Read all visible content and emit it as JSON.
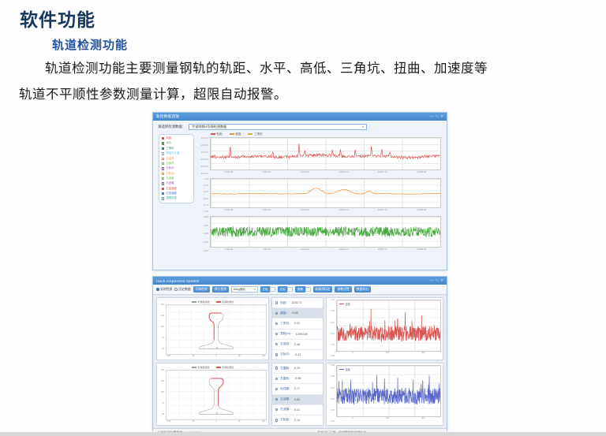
{
  "page": {
    "title": "软件功能",
    "subtitle": "轨道检测功能",
    "paragraph_line1": "轨道检测功能主要测量钢轨的轨距、水平、高低、三角坑、扭曲、加速度等",
    "paragraph_line2": "轨道不平顺性参数测量计算，超限自动报警。"
  },
  "colors": {
    "accent_blue": "#4587cd",
    "red": "#d9534f",
    "orange": "#f0943c",
    "green": "#45a83c",
    "blue_series": "#5a66c9"
  },
  "window1": {
    "title": "轨检数据回放",
    "controls": [
      "—",
      "□",
      "✕"
    ],
    "select_label": "请选择检测数据：",
    "select_value": "宁波地铁4号线检测数据",
    "sidebar_items": [
      {
        "label": "轨距",
        "color": "#d9534f",
        "filled": true
      },
      {
        "label": "水平",
        "color": "#3f9e3f",
        "filled": true
      },
      {
        "label": "三角坑",
        "color": "#2e7d6e",
        "filled": true
      },
      {
        "label": "超高设计值",
        "color": "#5bc0de",
        "filled": false
      },
      {
        "label": "左高低",
        "color": "#f0943c",
        "filled": false
      },
      {
        "label": "右高低",
        "color": "#6fbf4a",
        "filled": false
      },
      {
        "label": "左轨向",
        "color": "#9b59b6",
        "filled": false
      },
      {
        "label": "右轨向",
        "color": "#f0943c",
        "filled": false
      },
      {
        "label": "左波磨",
        "color": "#6fbf4a",
        "filled": false
      },
      {
        "label": "右波磨",
        "color": "#9b59b6",
        "filled": false
      },
      {
        "label": "左加速度",
        "color": "#d9534f",
        "filled": true
      },
      {
        "label": "右加速度",
        "color": "#4a6fd9",
        "filled": true
      },
      {
        "label": "里程信息",
        "color": "#3aa7a0",
        "filled": false
      }
    ],
    "legend": [
      {
        "label": "轨距",
        "color": "#d9534f"
      },
      {
        "label": "超高",
        "color": "#f0943c"
      },
      {
        "label": "三角坑",
        "color": "#e0b23c"
      }
    ]
  },
  "window2": {
    "title": "track inspection system",
    "controls": [
      "—",
      "□",
      "✕"
    ],
    "toolbar": [
      {
        "type": "radio",
        "label": "实时检测",
        "checked": true
      },
      {
        "type": "radio",
        "label": "历史数据",
        "checked": false
      },
      {
        "type": "button",
        "label": "开始检测"
      },
      {
        "type": "button",
        "label": "停止检测"
      },
      {
        "type": "select",
        "label": "60kg钢轨"
      },
      {
        "type": "toggle",
        "label": "左轨",
        "on": true
      },
      {
        "type": "toggle",
        "label": "右轨",
        "on": true
      },
      {
        "type": "toggle",
        "label": "报警",
        "on": true
      },
      {
        "type": "button",
        "label": "轨廓线标定"
      },
      {
        "type": "button",
        "label": "参数设置"
      },
      {
        "type": "button",
        "label": "数据导出"
      }
    ],
    "params_top": [
      {
        "label": "轨距：",
        "value": "1435.72",
        "selected": false
      },
      {
        "label": "超高：",
        "value": "-0.85",
        "selected": true
      },
      {
        "label": "三角坑：",
        "value": "0.32",
        "selected": false
      },
      {
        "label": "里程(m)：",
        "value": "12053.80",
        "selected": false
      },
      {
        "label": "左高低：",
        "value": "0.46",
        "selected": false
      },
      {
        "label": "左轨向：",
        "value": "-0.21",
        "selected": false
      }
    ],
    "params_bottom": [
      {
        "label": "左磨耗：",
        "value": "0.29",
        "selected": false
      },
      {
        "label": "右磨耗：",
        "value": "-0.08",
        "selected": false
      },
      {
        "label": "轨顶磨：",
        "value": "0.17",
        "selected": false
      },
      {
        "label": "左波磨：",
        "value": "0.62",
        "selected": true
      },
      {
        "label": "右波磨：",
        "value": "0.31",
        "selected": false
      },
      {
        "label": "左轨距：",
        "value": "0.14",
        "selected": false
      }
    ],
    "status_left": "当前检测位置里程(m)：29257.3",
    "status_mid": "系统运行正常，检测数据实时保存中…"
  },
  "chart_data": [
    {
      "id": "gauge",
      "type": "line",
      "name": "轨距",
      "unit": "mm",
      "color": "#d9534f",
      "ylim": [
        1434.0,
        1436.5
      ],
      "y_ticks": [
        "1436.5",
        "1436.0",
        "1435.5",
        "1435.0",
        "1434.5",
        "1434.0"
      ],
      "x_ticks": [
        "3732.18",
        "7463.52",
        "11194.86",
        "14926.20",
        "18657.54",
        "22388.88"
      ],
      "baseline": 0.58,
      "noise": 0.045,
      "wander": 0.05,
      "spikes": [
        {
          "x": 0.085,
          "h": 0.42
        },
        {
          "x": 0.27,
          "h": 0.18
        },
        {
          "x": 0.385,
          "h": 0.45
        },
        {
          "x": 0.41,
          "h": 0.2
        },
        {
          "x": 0.53,
          "h": 0.22
        },
        {
          "x": 0.565,
          "h": 0.3
        },
        {
          "x": 0.63,
          "h": 0.25
        },
        {
          "x": 0.7,
          "h": 0.35
        },
        {
          "x": 0.745,
          "h": 0.28
        },
        {
          "x": 0.78,
          "h": 0.2
        }
      ],
      "seed": 7,
      "points": 420
    },
    {
      "id": "cant",
      "type": "line",
      "name": "超高",
      "unit": "mm",
      "color": "#f0943c",
      "ylim": [
        -1.2,
        1.2
      ],
      "y_ticks": [
        "1.20",
        "0.72",
        "0.24",
        "-0.24",
        "-0.72",
        "-1.20"
      ],
      "x_ticks": [
        "3732.18",
        "7463.52",
        "11194.86",
        "14926.20",
        "18657.54",
        "22388.88"
      ],
      "baseline": 0.52,
      "noise": 0.013,
      "wander": 0.012,
      "bumps": [
        {
          "x": 0.46,
          "w": 0.1,
          "h": 0.18
        },
        {
          "x": 0.58,
          "w": 0.12,
          "h": 0.15
        },
        {
          "x": 0.69,
          "w": 0.06,
          "h": 0.08
        }
      ],
      "seed": 11,
      "points": 420
    },
    {
      "id": "accel",
      "type": "line",
      "name": "加速度",
      "unit": "g",
      "color": "#45a83c",
      "ylim": [
        -0.5,
        0.5
      ],
      "y_ticks": [
        "0.50",
        "0.25",
        "0.00",
        "-0.25",
        "-0.50"
      ],
      "x_ticks": [
        "3732.18",
        "7463.52",
        "11194.86",
        "14926.20",
        "18657.54",
        "22388.88"
      ],
      "baseline": 0.5,
      "noise": 0.17,
      "seed": 23,
      "points": 700
    },
    {
      "id": "wave-left",
      "type": "line",
      "name": "左波磨",
      "color": "#d9534f",
      "ylim": [
        0,
        0.35
      ],
      "y_ticks": [
        "0.35",
        "0.28",
        "0.21",
        "0.14",
        "0.07",
        "0.00"
      ],
      "x_ticks": [
        "0",
        "200",
        "400"
      ],
      "baseline": 0.66,
      "noise": 0.15,
      "spike_prob": 0.05,
      "spike_amp": 0.45,
      "seed": 31,
      "points": 460,
      "legend": [
        {
          "label": "波磨",
          "color": "#d9534f"
        }
      ]
    },
    {
      "id": "wave-right",
      "type": "line",
      "name": "右波磨",
      "color": "#5a66c9",
      "ylim": [
        0,
        0.35
      ],
      "y_ticks": [
        "0.35",
        "0.28",
        "0.21",
        "0.14",
        "0.07",
        "0.00"
      ],
      "x_ticks": [
        "0",
        "200",
        "400"
      ],
      "baseline": 0.6,
      "noise": 0.16,
      "spike_prob": 0.05,
      "spike_amp": 0.4,
      "seed": 41,
      "points": 460,
      "legend": [
        {
          "label": "波磨",
          "color": "#5a66c9"
        }
      ]
    },
    {
      "id": "profile-left",
      "type": "profile",
      "overlay_side": "left",
      "legend": [
        {
          "label": "标准轨廓线",
          "color": "#9aa0a6"
        },
        {
          "label": "实测轨廓线",
          "color": "#d9534f"
        }
      ],
      "y_ticks": [
        "160",
        "130",
        "100",
        "70",
        "40"
      ],
      "x_ticks": [
        "-100",
        "-50",
        "0",
        "50",
        "100"
      ]
    },
    {
      "id": "profile-right",
      "type": "profile",
      "overlay_side": "right",
      "legend": [
        {
          "label": "标准轨廓线",
          "color": "#9aa0a6"
        },
        {
          "label": "实测轨廓线",
          "color": "#d9534f"
        }
      ],
      "y_ticks": [
        "160",
        "130",
        "100",
        "70",
        "40"
      ],
      "x_ticks": [
        "-100",
        "-50",
        "0",
        "50",
        "100"
      ]
    }
  ]
}
